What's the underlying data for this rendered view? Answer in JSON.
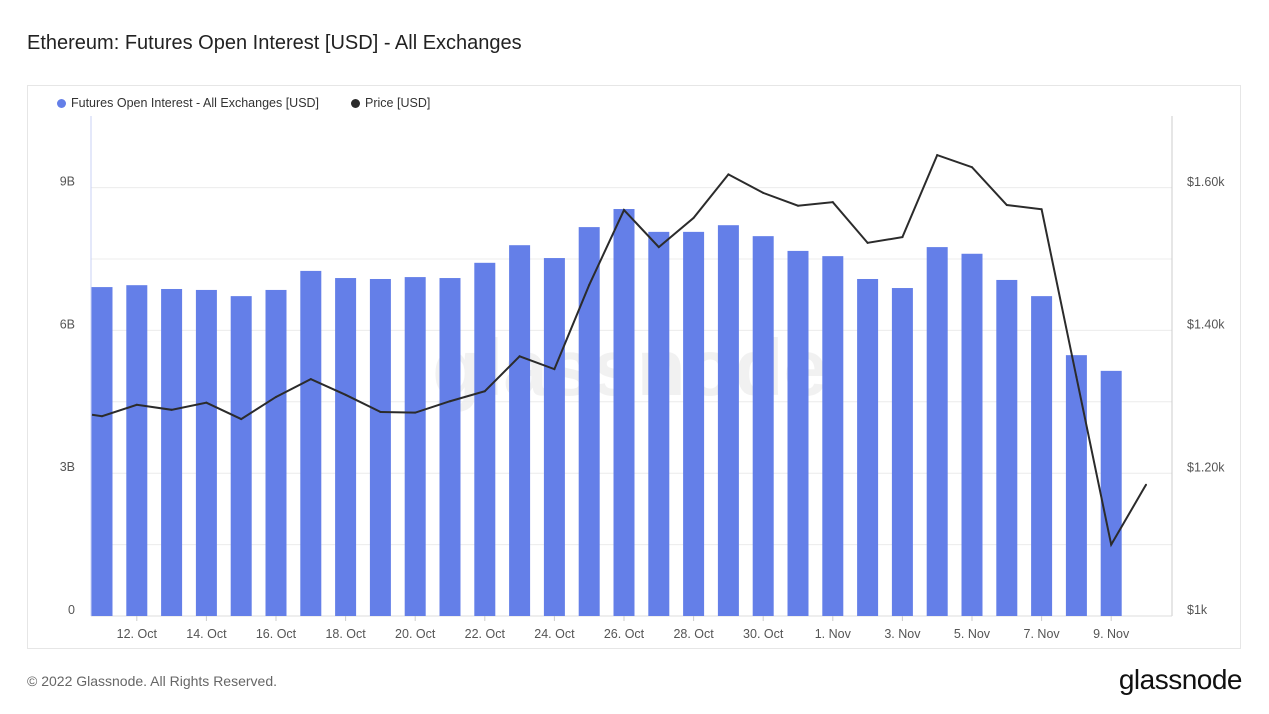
{
  "title": "Ethereum: Futures Open Interest [USD] - All Exchanges",
  "footer": "© 2022 Glassnode. All Rights Reserved.",
  "logo": "glassnode",
  "watermark": "glassnode",
  "colors": {
    "bars": "#647fe8",
    "price": "#2b2b2b"
  },
  "chart_data": {
    "type": "bar+line",
    "title": "Ethereum: Futures Open Interest [USD] - All Exchanges",
    "legend_position": "top-left",
    "grid": true,
    "x_tick_labels": [
      "12. Oct",
      "14. Oct",
      "16. Oct",
      "18. Oct",
      "20. Oct",
      "22. Oct",
      "24. Oct",
      "26. Oct",
      "28. Oct",
      "30. Oct",
      "1. Nov",
      "3. Nov",
      "5. Nov",
      "7. Nov",
      "9. Nov"
    ],
    "y_left": {
      "ticks": [
        "0",
        "3B",
        "6B",
        "9B"
      ],
      "tick_values": [
        0,
        3,
        6,
        9
      ],
      "range": [
        0,
        10.5
      ],
      "unit": "B"
    },
    "y_right": {
      "ticks": [
        "$1k",
        "$1.20k",
        "$1.40k",
        "$1.60k"
      ],
      "tick_values": [
        1000,
        1200,
        1400,
        1600
      ],
      "range": [
        1000,
        1700
      ]
    },
    "series": [
      {
        "name": "Futures Open Interest - All Exchanges [USD]",
        "type": "bar",
        "axis": "left",
        "dates": [
          "11 Oct",
          "12 Oct",
          "13 Oct",
          "14 Oct",
          "15 Oct",
          "16 Oct",
          "17 Oct",
          "18 Oct",
          "19 Oct",
          "20 Oct",
          "21 Oct",
          "22 Oct",
          "23 Oct",
          "24 Oct",
          "25 Oct",
          "26 Oct",
          "27 Oct",
          "28 Oct",
          "29 Oct",
          "30 Oct",
          "31 Oct",
          "1 Nov",
          "2 Nov",
          "3 Nov",
          "4 Nov",
          "5 Nov",
          "6 Nov",
          "7 Nov",
          "8 Nov",
          "9 Nov"
        ],
        "values": [
          6.91,
          6.95,
          6.87,
          6.85,
          6.72,
          6.85,
          7.25,
          7.1,
          7.08,
          7.12,
          7.1,
          7.42,
          7.79,
          7.52,
          8.17,
          8.55,
          8.07,
          8.07,
          8.21,
          7.98,
          7.67,
          7.56,
          7.08,
          6.89,
          7.75,
          7.61,
          7.06,
          6.72,
          5.48,
          5.15
        ]
      },
      {
        "name": "Price [USD]",
        "type": "line",
        "axis": "right",
        "dates": [
          "11 Oct",
          "12 Oct",
          "13 Oct",
          "14 Oct",
          "15 Oct",
          "16 Oct",
          "17 Oct",
          "18 Oct",
          "19 Oct",
          "20 Oct",
          "21 Oct",
          "22 Oct",
          "23 Oct",
          "24 Oct",
          "25 Oct",
          "26 Oct",
          "27 Oct",
          "28 Oct",
          "29 Oct",
          "30 Oct",
          "31 Oct",
          "1 Nov",
          "2 Nov",
          "3 Nov",
          "4 Nov",
          "5 Nov",
          "6 Nov",
          "7 Nov",
          "8 Nov",
          "9 Nov",
          "10 Nov"
        ],
        "values": [
          1280,
          1296,
          1289,
          1299,
          1276,
          1307,
          1332,
          1310,
          1286,
          1285,
          1301,
          1315,
          1364,
          1346,
          1464,
          1569,
          1517,
          1558,
          1619,
          1593,
          1575,
          1580,
          1523,
          1531,
          1646,
          1629,
          1576,
          1570,
          1335,
          1100,
          1184
        ]
      }
    ]
  }
}
